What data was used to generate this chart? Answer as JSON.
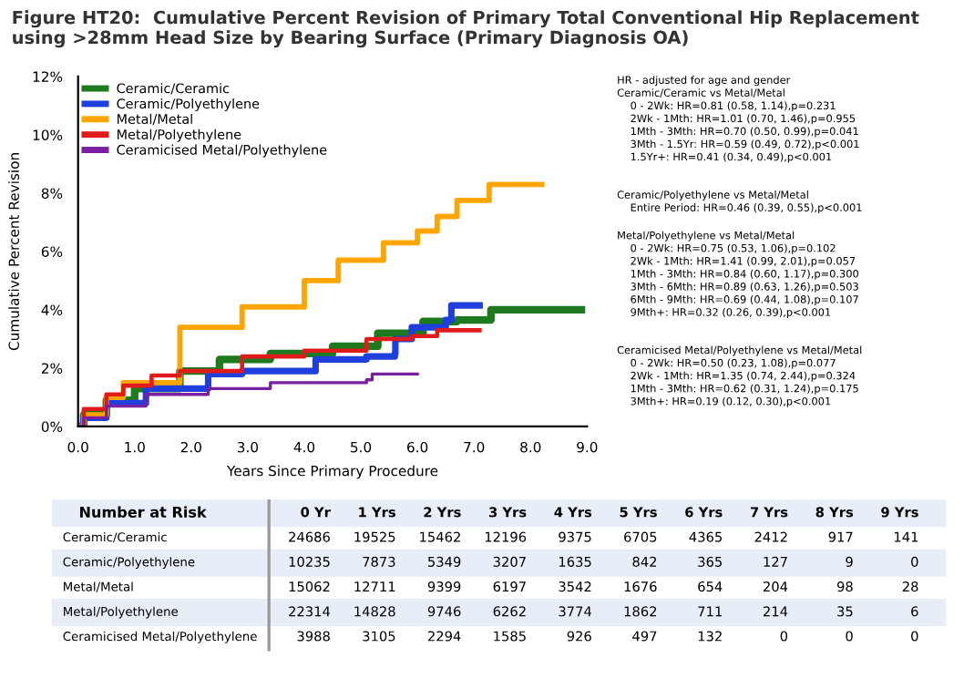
{
  "chart_data": {
    "type": "step",
    "title": "Figure HT20:  Cumulative Percent Revision of Primary Total Conventional Hip Replacement using >28mm Head Size by Bearing Surface (Primary Diagnosis OA)",
    "xlabel": "Years Since Primary Procedure",
    "ylabel": "Cumulative Percent Revision",
    "xlim": [
      0,
      9
    ],
    "ylim": [
      0,
      12
    ],
    "xticks": [
      {
        "value": 0,
        "label": "0.0"
      },
      {
        "value": 1,
        "label": "1.0"
      },
      {
        "value": 2,
        "label": "2.0"
      },
      {
        "value": 3,
        "label": "3.0"
      },
      {
        "value": 4,
        "label": "4.0"
      },
      {
        "value": 5,
        "label": "5.0"
      },
      {
        "value": 6,
        "label": "6.0"
      },
      {
        "value": 7,
        "label": "7.0"
      },
      {
        "value": 8,
        "label": "8.0"
      },
      {
        "value": 9,
        "label": "9.0"
      }
    ],
    "yticks": [
      {
        "value": 0,
        "label": "0%"
      },
      {
        "value": 2,
        "label": "2%"
      },
      {
        "value": 4,
        "label": "4%"
      },
      {
        "value": 6,
        "label": "6%"
      },
      {
        "value": 8,
        "label": "8%"
      },
      {
        "value": 10,
        "label": "10%"
      },
      {
        "value": 12,
        "label": "12%"
      }
    ],
    "grid": false,
    "legend": "top left",
    "marker": "none",
    "line_style": "solid",
    "series": [
      {
        "name": "Ceramic/Ceramic",
        "color": "#1e7a1e",
        "x": [
          0,
          0.1,
          0.5,
          1.0,
          1.8,
          2.5,
          3.4,
          4.5,
          5.3,
          6.1,
          6.7,
          7.3,
          8.9
        ],
        "values": [
          0,
          0.4,
          0.9,
          1.3,
          1.9,
          2.3,
          2.5,
          2.75,
          3.2,
          3.6,
          3.65,
          4.0,
          4.0
        ]
      },
      {
        "name": "Ceramic/Polyethylene",
        "color": "#1f3fdc",
        "x": [
          0,
          0.1,
          0.5,
          1.2,
          2.3,
          2.9,
          3.7,
          4.2,
          5.1,
          5.6,
          5.61,
          5.9,
          6.5,
          6.6,
          7.1
        ],
        "values": [
          0,
          0.3,
          0.8,
          1.3,
          1.8,
          1.9,
          1.9,
          2.3,
          2.4,
          2.5,
          3.0,
          3.4,
          3.65,
          4.15,
          4.15
        ]
      },
      {
        "name": "Metal/Metal",
        "color": "#ffa500",
        "x": [
          0,
          0.1,
          0.5,
          0.8,
          1.8,
          2.9,
          4.0,
          4.6,
          5.4,
          6.0,
          6.35,
          6.7,
          7.25,
          7.27,
          8.2
        ],
        "values": [
          0,
          0.4,
          1.0,
          1.5,
          3.4,
          4.1,
          5.0,
          5.7,
          6.3,
          6.7,
          7.2,
          7.75,
          7.75,
          8.3,
          8.3
        ]
      },
      {
        "name": "Metal/Polyethylene",
        "color": "#e01b1b",
        "x": [
          0,
          0.1,
          0.5,
          0.8,
          1.3,
          1.8,
          2.9,
          4.0,
          5.1,
          5.9,
          6.35,
          7.1
        ],
        "values": [
          0,
          0.6,
          1.1,
          1.4,
          1.75,
          1.9,
          2.4,
          2.6,
          3.0,
          3.1,
          3.3,
          3.3
        ]
      },
      {
        "name": "Ceramicised Metal/Polyethylene",
        "color": "#7b1fa2",
        "x": [
          0,
          0.1,
          0.5,
          1.2,
          2.3,
          3.4,
          5.1,
          5.2,
          6.0
        ],
        "values": [
          0,
          0.3,
          0.7,
          1.1,
          1.3,
          1.5,
          1.6,
          1.8,
          1.8
        ]
      }
    ],
    "annotations": [
      "HR - adjusted for age and gender\nCeramic/Ceramic vs Metal/Metal\n    0 - 2Wk: HR=0.81 (0.58, 1.14),p=0.231\n    2Wk - 1Mth: HR=1.01 (0.70, 1.46),p=0.955\n    1Mth - 3Mth: HR=0.70 (0.50, 0.99),p=0.041\n    3Mth - 1.5Yr: HR=0.59 (0.49, 0.72),p<0.001\n    1.5Yr+: HR=0.41 (0.34, 0.49),p<0.001",
      "Ceramic/Polyethylene vs Metal/Metal\n    Entire Period: HR=0.46 (0.39, 0.55),p<0.001",
      "Metal/Polyethylene vs Metal/Metal\n    0 - 2Wk: HR=0.75 (0.53, 1.06),p=0.102\n    2Wk - 1Mth: HR=1.41 (0.99, 2.01),p=0.057\n    1Mth - 3Mth: HR=0.84 (0.60, 1.17),p=0.300\n    3Mth - 6Mth: HR=0.89 (0.63, 1.26),p=0.503\n    6Mth - 9Mth: HR=0.69 (0.44, 1.08),p=0.107\n    9Mth+: HR=0.32 (0.26, 0.39),p<0.001",
      "Ceramicised Metal/Polyethylene vs Metal/Metal\n    0 - 2Wk: HR=0.50 (0.23, 1.08),p=0.077\n    2Wk - 1Mth: HR=1.35 (0.74, 2.44),p=0.324\n    1Mth - 3Mth: HR=0.62 (0.31, 1.24),p=0.175\n    3Mth+: HR=0.19 (0.12, 0.30),p<0.001",
      "Number at Risk\t0 Yr\t1 Yrs\t2 Yrs\t3 Yrs\t4 Yrs\t5 Yrs\t6 Yrs\t7 Yrs\t8 Yrs\t9 Yrs",
      "Ceramic/Ceramic\t24686\t19525\t15462\t12196\t9375\t6705\t4365\t2412\t917\t141",
      "Ceramic/Polyethylene\t10235\t7873\t5349\t3207\t1635\t842\t365\t127\t9\t0",
      "Metal/Metal\t15062\t12711\t9399\t6197\t3542\t1676\t654\t204\t98\t28",
      "Metal/Polyethylene\t22314\t14828\t9746\t6262\t3774\t1862\t711\t214\t35\t6",
      "Ceramicised Metal/Polyethylene\t3988\t3105\t2294\t1585\t926\t497\t132\t0\t0\t0"
    ]
  }
}
